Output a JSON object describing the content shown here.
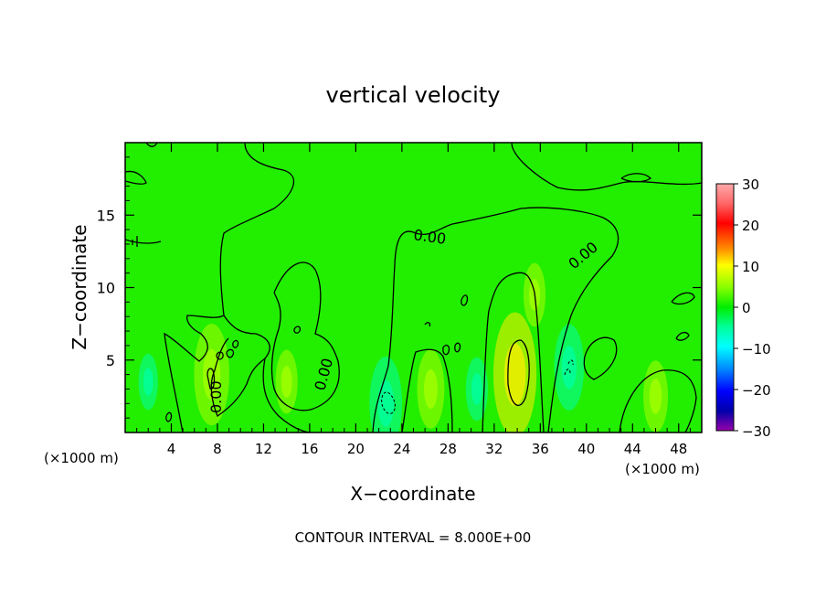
{
  "chart_data": {
    "type": "heatmap",
    "title": "vertical velocity",
    "xlabel": "X−coordinate",
    "ylabel": "Z−coordinate",
    "x_unit_left": "(×1000 m)",
    "x_unit_right": "(×1000 m)",
    "footer": "CONTOUR INTERVAL = 8.000E+00",
    "xlim": [
      0,
      50
    ],
    "ylim": [
      0,
      20
    ],
    "x_ticks": [
      4,
      8,
      12,
      16,
      20,
      24,
      28,
      32,
      36,
      40,
      44,
      48
    ],
    "y_ticks": [
      5,
      10,
      15
    ],
    "contour_label": "0.00",
    "colorbar": {
      "ticks": [
        "30",
        "20",
        "10",
        "0",
        "−10",
        "−20",
        "−30"
      ],
      "min": -30,
      "max": 30
    },
    "anomalies": [
      {
        "x": 7.5,
        "z": 4.0,
        "value": 9
      },
      {
        "x": 33.8,
        "z": 4.0,
        "value": 12
      },
      {
        "x": 22.6,
        "z": 2.0,
        "value": -8
      },
      {
        "x": 38.5,
        "z": 4.5,
        "value": -7
      },
      {
        "x": 46.0,
        "z": 2.5,
        "value": 5
      },
      {
        "x": 26.5,
        "z": 3.0,
        "value": 6
      },
      {
        "x": 14.0,
        "z": 3.5,
        "value": 4
      },
      {
        "x": 2.0,
        "z": 3.5,
        "value": -3
      },
      {
        "x": 30.5,
        "z": 3.0,
        "value": -4
      },
      {
        "x": 35.5,
        "z": 9.5,
        "value": 4
      }
    ]
  }
}
